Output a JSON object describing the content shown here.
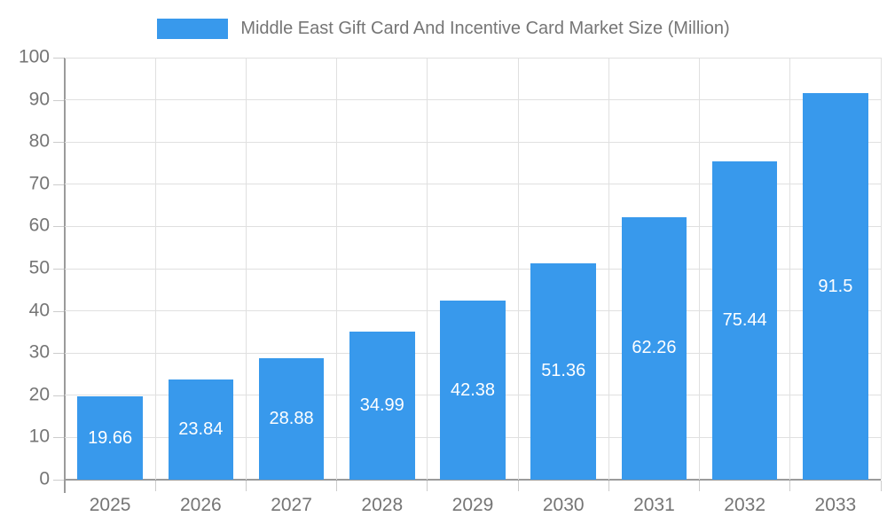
{
  "chart_data": {
    "type": "bar",
    "title": "Middle East Gift Card And Incentive Card Market Size (Million)",
    "legend": [
      "Middle East Gift Card And Incentive Card Market Size (Million)"
    ],
    "legend_position": "top-center",
    "categories": [
      "2025",
      "2026",
      "2027",
      "2028",
      "2029",
      "2030",
      "2031",
      "2032",
      "2033"
    ],
    "values": [
      19.66,
      23.84,
      28.88,
      34.99,
      42.38,
      51.36,
      62.26,
      75.44,
      91.5
    ],
    "value_labels": [
      "19.66",
      "23.84",
      "28.88",
      "34.99",
      "42.38",
      "51.36",
      "62.26",
      "75.44",
      "91.5"
    ],
    "xlabel": "",
    "ylabel": "",
    "ylim": [
      0,
      100
    ],
    "yticks": [
      0,
      10,
      20,
      30,
      40,
      50,
      60,
      70,
      80,
      90,
      100
    ],
    "grid": true,
    "value_label_position": "center-of-bar"
  },
  "colors": {
    "bar": "#3899EC",
    "axis_line": "#9b9b9b",
    "gridline": "#e0e0e0",
    "tick_mark": "#cccccc",
    "tick_label": "#757575",
    "legend_text": "#757575",
    "value_label": "#ffffff",
    "background": "#ffffff"
  }
}
